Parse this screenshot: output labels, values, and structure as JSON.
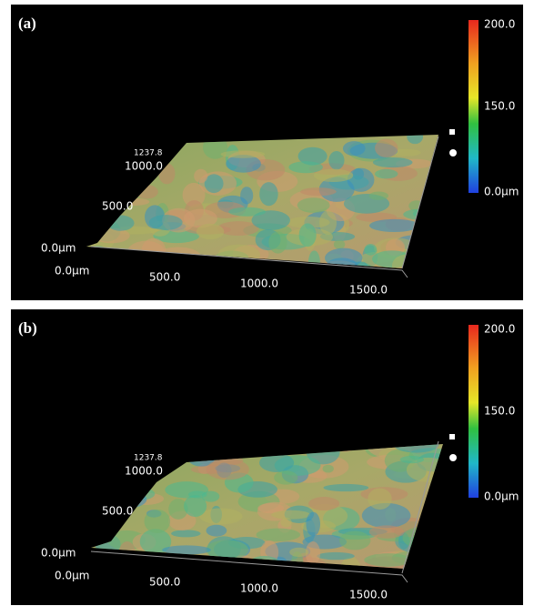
{
  "panels": [
    {
      "label": "(a)",
      "colorbar_labels": [
        "200.0",
        "150.0",
        "0.0µm"
      ],
      "y_axis_labels": [
        "1237.8",
        "1000.0",
        "500.0",
        "0.0µm"
      ],
      "x_axis_labels": [
        "0.0µm",
        "500.0",
        "1000.0",
        "1500.0"
      ]
    },
    {
      "label": "(b)",
      "colorbar_labels": [
        "200.0",
        "150.0",
        "0.0µm"
      ],
      "y_axis_labels": [
        "1237.8",
        "1000.0",
        "500.0",
        "0.0µm"
      ],
      "x_axis_labels": [
        "0.0µm",
        "500.0",
        "1000.0",
        "1500.0"
      ]
    }
  ]
}
